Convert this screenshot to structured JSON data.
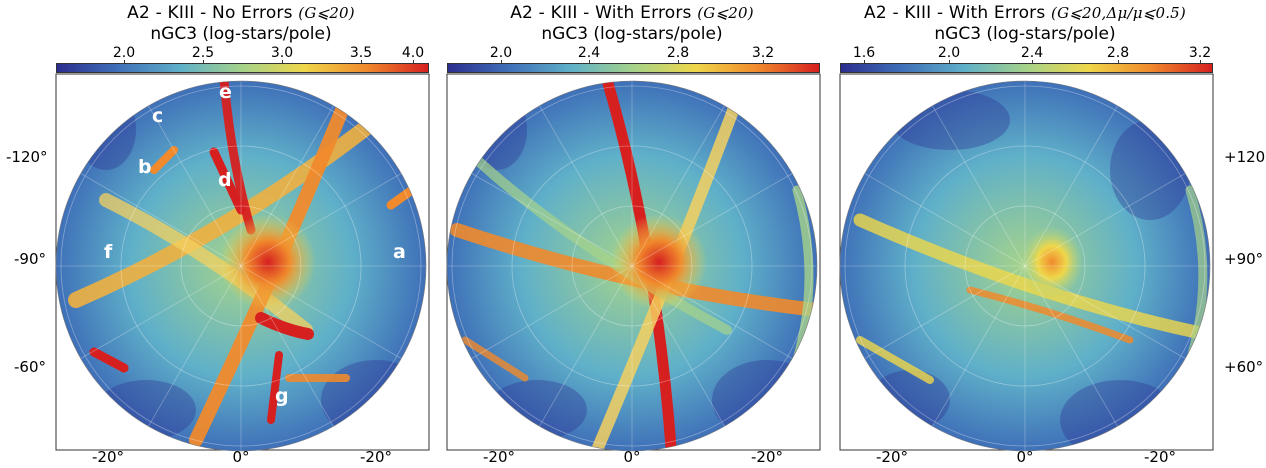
{
  "chart_data": [
    {
      "type": "heatmap",
      "projection": "polar",
      "title": "A2 - KIII - No Errors",
      "title_math": "(G⩽20)",
      "colorbar_label": "nGC3 (log-stars/pole)",
      "colorbar_ticks": [
        "2.0",
        "2.5",
        "3.0",
        "3.5",
        "4.0"
      ],
      "colorbar_range": [
        1.7,
        4.05
      ],
      "y_ticks": [
        "-120°",
        "-90°",
        "-60°"
      ],
      "y_ticks_side": "left",
      "x_ticks": [
        "-20°",
        "0°",
        "-20°"
      ],
      "annotations": [
        "a",
        "b",
        "c",
        "d",
        "e",
        "f",
        "g"
      ],
      "colormap": [
        "#2c2e8f",
        "#3f70b8",
        "#5fb0c9",
        "#a6d38a",
        "#efd74a",
        "#f08a2c",
        "#d62020"
      ]
    },
    {
      "type": "heatmap",
      "projection": "polar",
      "title": "A2 - KIII - With Errors",
      "title_math": "(G⩽20)",
      "colorbar_label": "nGC3 (log-stars/pole)",
      "colorbar_ticks": [
        "2.0",
        "2.4",
        "2.8",
        "3.2"
      ],
      "colorbar_range": [
        1.75,
        3.5
      ],
      "y_ticks": [],
      "x_ticks": [
        "-20°",
        "0°",
        "-20°"
      ],
      "colormap": [
        "#2c2e8f",
        "#3f70b8",
        "#5fb0c9",
        "#a6d38a",
        "#efd74a",
        "#f08a2c",
        "#d62020"
      ]
    },
    {
      "type": "heatmap",
      "projection": "polar",
      "title": "A2 - KIII - With Errors",
      "title_math": "(G⩽20,Δμ/μ⩽0.5)",
      "colorbar_label": "nGC3 (log-stars/pole)",
      "colorbar_ticks": [
        "1.6",
        "2.0",
        "2.4",
        "2.8",
        "3.2"
      ],
      "colorbar_range": [
        1.5,
        3.25
      ],
      "y_ticks": [
        "+120",
        "+90°",
        "+60°"
      ],
      "y_ticks_side": "right",
      "x_ticks": [
        "-20°",
        "0°",
        "-20°"
      ],
      "colormap": [
        "#2c2e8f",
        "#3f70b8",
        "#5fb0c9",
        "#a6d38a",
        "#efd74a",
        "#f08a2c",
        "#d62020"
      ]
    }
  ]
}
